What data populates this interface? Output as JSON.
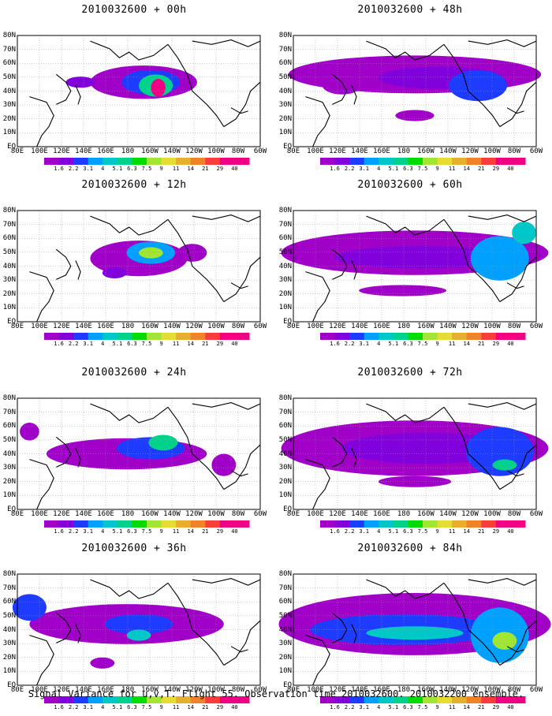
{
  "caption": "Signal Variance for u,v,T. Flight 55. Observation time 2010032600. 2010032200 ensemble.",
  "lat_labels": [
    "80N",
    "70N",
    "60N",
    "50N",
    "40N",
    "30N",
    "20N",
    "10N",
    "EQ"
  ],
  "lon_labels": [
    "80E",
    "100E",
    "120E",
    "140E",
    "160E",
    "180",
    "160W",
    "140W",
    "120W",
    "100W",
    "80W",
    "60W"
  ],
  "colorbar": {
    "labels": [
      "1.6",
      "2.2",
      "3.1",
      "4",
      "5.1",
      "6.3",
      "7.5",
      "9",
      "11",
      "14",
      "21",
      "29",
      "40"
    ],
    "colors": [
      "#a000c8",
      "#8200dc",
      "#1e3cff",
      "#00a0ff",
      "#00c8c8",
      "#00d28c",
      "#00dc00",
      "#a0e632",
      "#e6dc32",
      "#e6af2d",
      "#f08228",
      "#fa3c3c",
      "#f00082"
    ]
  },
  "panels": [
    {
      "title": "2010032600 + 00h"
    },
    {
      "title": "2010032600 + 48h"
    },
    {
      "title": "2010032600 + 12h"
    },
    {
      "title": "2010032600 + 60h"
    },
    {
      "title": "2010032600 + 24h"
    },
    {
      "title": "2010032600 + 72h"
    },
    {
      "title": "2010032600 + 36h"
    },
    {
      "title": "2010032600 + 84h"
    }
  ]
}
